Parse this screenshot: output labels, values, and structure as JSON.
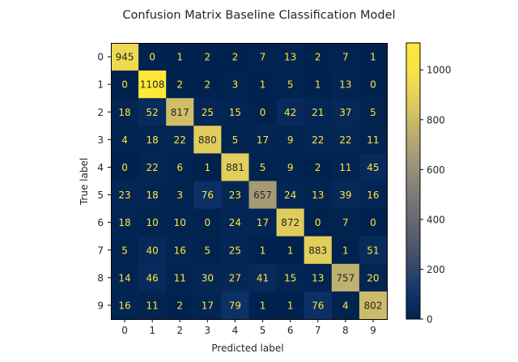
{
  "chart_data": {
    "type": "heatmap",
    "title": "Confusion Matrix Baseline Classification Model",
    "xlabel": "Predicted label",
    "ylabel": "True label",
    "x_categories": [
      "0",
      "1",
      "2",
      "3",
      "4",
      "5",
      "6",
      "7",
      "8",
      "9"
    ],
    "y_categories": [
      "0",
      "1",
      "2",
      "3",
      "4",
      "5",
      "6",
      "7",
      "8",
      "9"
    ],
    "values": [
      [
        945,
        0,
        1,
        2,
        2,
        7,
        13,
        2,
        7,
        1
      ],
      [
        0,
        1108,
        2,
        2,
        3,
        1,
        5,
        1,
        13,
        0
      ],
      [
        18,
        52,
        817,
        25,
        15,
        0,
        42,
        21,
        37,
        5
      ],
      [
        4,
        18,
        22,
        880,
        5,
        17,
        9,
        22,
        22,
        11
      ],
      [
        0,
        22,
        6,
        1,
        881,
        5,
        9,
        2,
        11,
        45
      ],
      [
        23,
        18,
        3,
        76,
        23,
        657,
        24,
        13,
        39,
        16
      ],
      [
        18,
        10,
        10,
        0,
        24,
        17,
        872,
        0,
        7,
        0
      ],
      [
        5,
        40,
        16,
        5,
        25,
        1,
        1,
        883,
        1,
        51
      ],
      [
        14,
        46,
        11,
        30,
        27,
        41,
        15,
        13,
        757,
        20
      ],
      [
        16,
        11,
        2,
        17,
        79,
        1,
        1,
        76,
        4,
        802
      ]
    ],
    "colormap": "cividis",
    "colorbar": {
      "min": 0,
      "max": 1108,
      "ticks": [
        0,
        200,
        400,
        600,
        800,
        1000
      ]
    },
    "grid": false
  }
}
